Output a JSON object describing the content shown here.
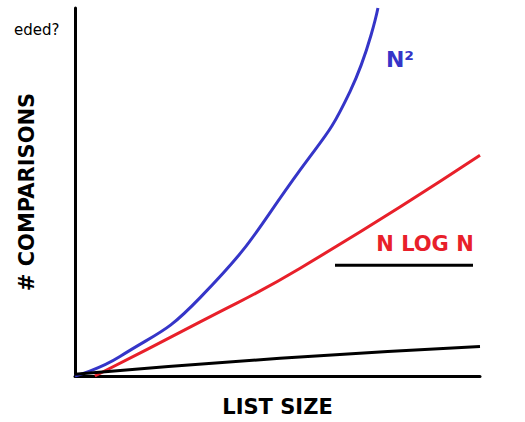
{
  "chart_data": {
    "type": "line",
    "annotation": "eded?",
    "x_label": "LIST SIZE",
    "y_label": "# COMPARISONS",
    "xlim": [
      0,
      100
    ],
    "ylim": [
      0,
      100
    ],
    "tick_labels": false,
    "grid": false,
    "series": [
      {
        "name": "N²",
        "color": "#3535c8",
        "x": [
          0,
          11.1,
          30.9,
          55.6,
          67.9,
          74.8
        ],
        "values": [
          0,
          5.3,
          21.3,
          56,
          77.3,
          100
        ]
      },
      {
        "name": "N LOG N",
        "color": "#e8202a",
        "x": [
          4.9,
          30.9,
          55.6,
          100
        ],
        "values": [
          0,
          14.7,
          29.3,
          60
        ]
      },
      {
        "color": "#000000",
        "x": [
          0,
          50.6,
          100
        ],
        "values": [
          0.5,
          4.8,
          8
        ]
      }
    ]
  }
}
